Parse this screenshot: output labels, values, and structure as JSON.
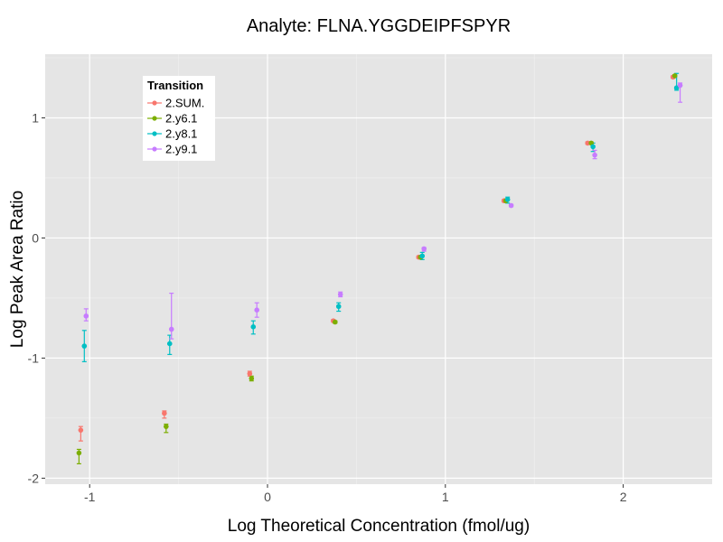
{
  "chart_data": {
    "type": "scatter",
    "title": "Analyte: FLNA.YGGDEIPFSPYR",
    "xlabel": "Log Theoretical Concentration (fmol/ug)",
    "ylabel": "Log Peak Area Ratio",
    "xlim": [
      -1.25,
      2.5
    ],
    "ylim": [
      -2.05,
      1.53
    ],
    "x_ticks": [
      -1,
      0,
      1,
      2
    ],
    "y_ticks": [
      -2,
      -1,
      0,
      1
    ],
    "x_tick_labels": [
      "-1",
      "0",
      "1",
      "2"
    ],
    "y_tick_labels": [
      "-2",
      "-1",
      "0",
      "1"
    ],
    "grid": true,
    "legend": {
      "title": "Transition",
      "position": "top-left"
    },
    "series": [
      {
        "name": "2.SUM.",
        "color": "#F8766D",
        "x": [
          -1.05,
          -0.58,
          -0.1,
          0.37,
          0.85,
          1.33,
          1.8,
          2.28
        ],
        "y": [
          -1.6,
          -1.46,
          -1.13,
          -0.69,
          -0.16,
          0.31,
          0.79,
          1.34
        ],
        "ymin": [
          -1.69,
          -1.5,
          -1.15,
          -0.7,
          -0.17,
          0.3,
          0.78,
          1.33
        ],
        "ymax": [
          -1.57,
          -1.44,
          -1.11,
          -0.68,
          -0.15,
          0.32,
          0.8,
          1.35
        ]
      },
      {
        "name": "2.y6.1",
        "color": "#7CAE00",
        "x": [
          -1.06,
          -0.57,
          -0.09,
          0.38,
          0.86,
          1.34,
          1.82,
          2.29
        ],
        "y": [
          -1.79,
          -1.57,
          -1.17,
          -0.7,
          -0.16,
          0.31,
          0.79,
          1.35
        ],
        "ymin": [
          -1.88,
          -1.62,
          -1.19,
          -0.71,
          -0.17,
          0.3,
          0.78,
          1.34
        ],
        "ymax": [
          -1.76,
          -1.55,
          -1.15,
          -0.69,
          -0.15,
          0.32,
          0.8,
          1.36
        ]
      },
      {
        "name": "2.y8.1",
        "color": "#00BFC4",
        "x": [
          -1.03,
          -0.55,
          -0.08,
          0.4,
          0.87,
          1.35,
          1.83,
          2.3
        ],
        "y": [
          -0.9,
          -0.88,
          -0.74,
          -0.57,
          -0.15,
          0.32,
          0.76,
          1.25
        ],
        "ymin": [
          -1.03,
          -0.97,
          -0.8,
          -0.61,
          -0.18,
          0.29,
          0.72,
          1.23
        ],
        "ymax": [
          -0.77,
          -0.81,
          -0.69,
          -0.54,
          -0.12,
          0.34,
          0.79,
          1.37
        ]
      },
      {
        "name": "2.y9.1",
        "color": "#C77CFF",
        "x": [
          -1.02,
          -0.54,
          -0.06,
          0.41,
          0.88,
          1.37,
          1.84,
          2.32
        ],
        "y": [
          -0.65,
          -0.76,
          -0.6,
          -0.47,
          -0.09,
          0.27,
          0.69,
          1.27
        ],
        "ymin": [
          -0.69,
          -0.84,
          -0.66,
          -0.49,
          -0.11,
          0.26,
          0.66,
          1.13
        ],
        "ymax": [
          -0.59,
          -0.46,
          -0.54,
          -0.45,
          -0.08,
          0.28,
          0.73,
          1.29
        ]
      }
    ]
  }
}
